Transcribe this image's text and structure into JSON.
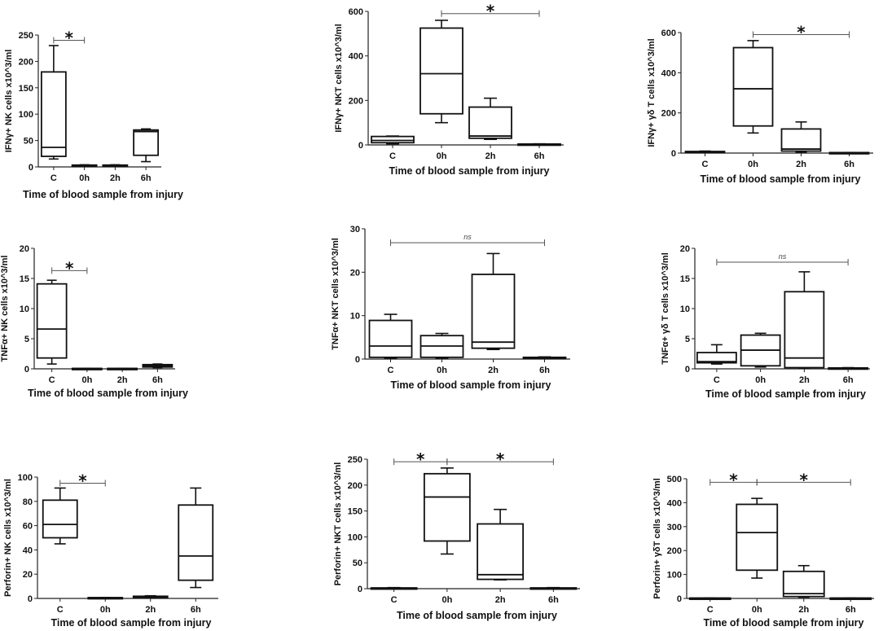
{
  "figure": {
    "categories": [
      "C",
      "0h",
      "2h",
      "6h"
    ],
    "xlabel": "Time of blood sample from injury"
  },
  "chart_data": [
    {
      "type": "box",
      "ylabel": "IFNγ+ NK cells x10^3/ml",
      "ylim": [
        0,
        250
      ],
      "yticks": [
        0,
        50,
        100,
        150,
        200,
        250
      ],
      "categories": [
        "C",
        "0h",
        "2h",
        "6h"
      ],
      "boxes": [
        {
          "min": 15,
          "q1": 20,
          "median": 37,
          "q3": 180,
          "max": 230
        },
        {
          "min": 2,
          "q1": 2.5,
          "median": 3,
          "q3": 3.5,
          "max": 4
        },
        {
          "min": 2,
          "q1": 2.5,
          "median": 3,
          "q3": 3.5,
          "max": 4
        },
        {
          "min": 10,
          "q1": 22,
          "median": 67,
          "q3": 70,
          "max": 72
        }
      ],
      "annotations": [
        {
          "from": 0,
          "to": 1,
          "y": 240,
          "label": "*"
        }
      ]
    },
    {
      "type": "box",
      "ylabel": "IFNγ+ NKT cells x10^3/ml",
      "ylim": [
        0,
        600
      ],
      "yticks": [
        0,
        200,
        400,
        600
      ],
      "categories": [
        "C",
        "0h",
        "2h",
        "6h"
      ],
      "boxes": [
        {
          "min": 5,
          "q1": 10,
          "median": 20,
          "q3": 38,
          "max": 40
        },
        {
          "min": 100,
          "q1": 140,
          "median": 320,
          "q3": 525,
          "max": 560
        },
        {
          "min": 25,
          "q1": 30,
          "median": 40,
          "q3": 170,
          "max": 210
        },
        {
          "min": 1,
          "q1": 2,
          "median": 3,
          "q3": 4,
          "max": 5
        }
      ],
      "annotations": [
        {
          "from": 1,
          "to": 3,
          "y": 590,
          "label": "*"
        }
      ]
    },
    {
      "type": "box",
      "ylabel": "IFNγ+ γδ T cells x10^3/ml",
      "ylim": [
        0,
        600
      ],
      "yticks": [
        0,
        200,
        400,
        600
      ],
      "categories": [
        "C",
        "0h",
        "2h",
        "6h"
      ],
      "boxes": [
        {
          "min": 2,
          "q1": 4,
          "median": 6,
          "q3": 8,
          "max": 10
        },
        {
          "min": 100,
          "q1": 135,
          "median": 320,
          "q3": 525,
          "max": 560
        },
        {
          "min": 5,
          "q1": 10,
          "median": 20,
          "q3": 120,
          "max": 155
        },
        {
          "min": 1,
          "q1": 1.5,
          "median": 2,
          "q3": 2.5,
          "max": 3
        }
      ],
      "annotations": [
        {
          "from": 1,
          "to": 3,
          "y": 590,
          "label": "*"
        }
      ]
    },
    {
      "type": "box",
      "ylabel": "TNFα+ NK cells x10^3/ml",
      "ylim": [
        0,
        20
      ],
      "yticks": [
        0,
        5,
        10,
        15,
        20
      ],
      "categories": [
        "C",
        "0h",
        "2h",
        "6h"
      ],
      "boxes": [
        {
          "min": 0.8,
          "q1": 1.8,
          "median": 6.6,
          "q3": 14.1,
          "max": 14.7
        },
        {
          "min": 0.02,
          "q1": 0.03,
          "median": 0.05,
          "q3": 0.07,
          "max": 0.08
        },
        {
          "min": 0.02,
          "q1": 0.03,
          "median": 0.05,
          "q3": 0.07,
          "max": 0.08
        },
        {
          "min": 0.2,
          "q1": 0.3,
          "median": 0.5,
          "q3": 0.7,
          "max": 0.8
        }
      ],
      "annotations": [
        {
          "from": 0,
          "to": 1,
          "y": 16.3,
          "label": "*"
        }
      ]
    },
    {
      "type": "box",
      "ylabel": "TNFα+ NKT cells x10^3/ml",
      "ylim": [
        0,
        30
      ],
      "yticks": [
        0,
        10,
        20,
        30
      ],
      "categories": [
        "C",
        "0h",
        "2h",
        "6h"
      ],
      "boxes": [
        {
          "min": 0.2,
          "q1": 0.4,
          "median": 3,
          "q3": 8.9,
          "max": 10.3
        },
        {
          "min": 0.2,
          "q1": 0.4,
          "median": 3,
          "q3": 5.4,
          "max": 5.9
        },
        {
          "min": 2.2,
          "q1": 2.5,
          "median": 3.9,
          "q3": 19.5,
          "max": 24.3
        },
        {
          "min": 0.1,
          "q1": 0.15,
          "median": 0.3,
          "q3": 0.4,
          "max": 0.5
        }
      ],
      "annotations": [
        {
          "from": 0,
          "to": 3,
          "y": 26.8,
          "label": "ns"
        }
      ]
    },
    {
      "type": "box",
      "ylabel": "TNFα+ γδ T cells x10^3/ml",
      "ylim": [
        0,
        20
      ],
      "yticks": [
        0,
        5,
        10,
        15,
        20
      ],
      "categories": [
        "C",
        "0h",
        "2h",
        "6h"
      ],
      "boxes": [
        {
          "min": 0.8,
          "q1": 1.0,
          "median": 1.2,
          "q3": 2.7,
          "max": 4.0
        },
        {
          "min": 0.3,
          "q1": 0.5,
          "median": 3.1,
          "q3": 5.6,
          "max": 5.9
        },
        {
          "min": 0.1,
          "q1": 0.2,
          "median": 1.8,
          "q3": 12.8,
          "max": 16.1
        },
        {
          "min": 0.05,
          "q1": 0.08,
          "median": 0.1,
          "q3": 0.15,
          "max": 0.2
        }
      ],
      "annotations": [
        {
          "from": 0,
          "to": 3,
          "y": 17.7,
          "label": "ns"
        }
      ]
    },
    {
      "type": "box",
      "ylabel": "Perforin+ NK cells x10^3/ml",
      "ylim": [
        0,
        100
      ],
      "yticks": [
        0,
        20,
        40,
        60,
        80,
        100
      ],
      "categories": [
        "C",
        "0h",
        "2h",
        "6h"
      ],
      "boxes": [
        {
          "min": 45,
          "q1": 50,
          "median": 61,
          "q3": 81,
          "max": 91
        },
        {
          "min": 0.2,
          "q1": 0.3,
          "median": 0.5,
          "q3": 0.7,
          "max": 0.8
        },
        {
          "min": 0.5,
          "q1": 0.8,
          "median": 1.2,
          "q3": 1.8,
          "max": 2.2
        },
        {
          "min": 9,
          "q1": 15,
          "median": 35,
          "q3": 77,
          "max": 91
        }
      ],
      "annotations": [
        {
          "from": 0,
          "to": 1,
          "y": 95,
          "label": "*"
        }
      ]
    },
    {
      "type": "box",
      "ylabel": "Perforin+ NKT cells x10^3/ml",
      "ylim": [
        0,
        250
      ],
      "yticks": [
        0,
        50,
        100,
        150,
        200,
        250
      ],
      "categories": [
        "C",
        "0h",
        "2h",
        "6h"
      ],
      "boxes": [
        {
          "min": 0.5,
          "q1": 0.8,
          "median": 1,
          "q3": 1.5,
          "max": 2
        },
        {
          "min": 67,
          "q1": 92,
          "median": 177,
          "q3": 222,
          "max": 233
        },
        {
          "min": 17,
          "q1": 18,
          "median": 27,
          "q3": 125,
          "max": 153
        },
        {
          "min": 0.5,
          "q1": 0.8,
          "median": 1,
          "q3": 1.5,
          "max": 2
        }
      ],
      "annotations": [
        {
          "from": 0,
          "to": 1,
          "y": 245,
          "label": "*"
        },
        {
          "from": 1,
          "to": 3,
          "y": 245,
          "label": "*"
        }
      ]
    },
    {
      "type": "box",
      "ylabel": "Perforin+ γδT cells x10^3/ml",
      "ylim": [
        0,
        500
      ],
      "yticks": [
        0,
        100,
        200,
        300,
        400,
        500
      ],
      "categories": [
        "C",
        "0h",
        "2h",
        "6h"
      ],
      "boxes": [
        {
          "min": 0.5,
          "q1": 0.8,
          "median": 1,
          "q3": 1.5,
          "max": 2
        },
        {
          "min": 85,
          "q1": 118,
          "median": 275,
          "q3": 393,
          "max": 418
        },
        {
          "min": 5,
          "q1": 8,
          "median": 20,
          "q3": 113,
          "max": 137
        },
        {
          "min": 0.5,
          "q1": 0.8,
          "median": 1,
          "q3": 1.5,
          "max": 2
        }
      ],
      "annotations": [
        {
          "from": 0,
          "to": 1,
          "y": 485,
          "label": "*"
        },
        {
          "from": 1,
          "to": 3,
          "y": 485,
          "label": "*"
        }
      ]
    }
  ]
}
